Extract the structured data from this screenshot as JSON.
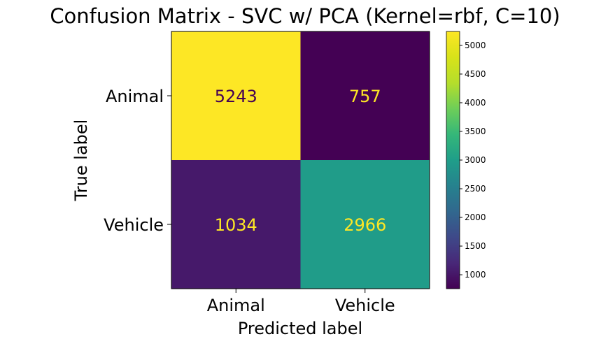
{
  "chart_data": {
    "type": "heatmap",
    "title": "Confusion Matrix - SVC w/ PCA (Kernel=rbf, C=10)",
    "xlabel": "Predicted label",
    "ylabel": "True label",
    "x_categories": [
      "Animal",
      "Vehicle"
    ],
    "y_categories": [
      "Animal",
      "Vehicle"
    ],
    "values": [
      [
        5243,
        757
      ],
      [
        1034,
        2966
      ]
    ],
    "colormap": "viridis",
    "colorbar": {
      "range": [
        757,
        5243
      ],
      "ticks": [
        "1000",
        "1500",
        "2000",
        "2500",
        "3000",
        "3500",
        "4000",
        "4500",
        "5000"
      ]
    },
    "colors": {
      "text_on_light": "#440154",
      "text_on_dark": "#fde725"
    }
  }
}
